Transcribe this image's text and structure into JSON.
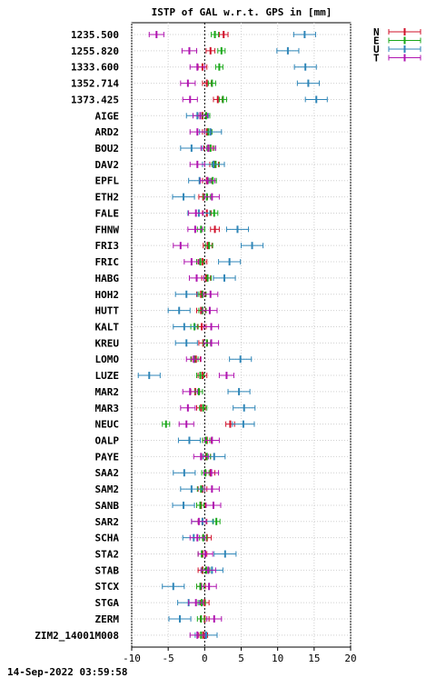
{
  "chart_data": {
    "type": "scatter",
    "title": "ISTP of GAL w.r.t. GPS in [mm]",
    "xlim": [
      -10,
      20
    ],
    "xticks": [
      -10,
      -5,
      0,
      5,
      10,
      15,
      20
    ],
    "grid": true,
    "legend_position": "top-right (outside plot)",
    "legend": [
      {
        "label": "N",
        "color": "#d0102a"
      },
      {
        "label": "E",
        "color": "#1aa81a"
      },
      {
        "label": "U",
        "color": "#2f86b8"
      },
      {
        "label": "T",
        "color": "#b015b0"
      }
    ],
    "categories": [
      "1235.500",
      "1255.820",
      "1333.600",
      "1352.714",
      "1373.425",
      "AIGE",
      "ARD2",
      "BOU2",
      "DAV2",
      "EPFL",
      "ETH2",
      "FALE",
      "FHNW",
      "FRI3",
      "FRIC",
      "HABG",
      "HOH2",
      "HUTT",
      "KALT",
      "KREU",
      "LOMO",
      "LUZE",
      "MAR2",
      "MAR3",
      "NEUC",
      "OALP",
      "PAYE",
      "SAA2",
      "SAM2",
      "SANB",
      "SAR2",
      "SCHA",
      "STA2",
      "STAB",
      "STCX",
      "STGA",
      "ZERM",
      "ZIM2_14001M008"
    ],
    "series": [
      {
        "name": "N",
        "color": "#d0102a",
        "err": 0.6,
        "values": [
          2.6,
          0.8,
          -0.3,
          0.3,
          1.8,
          -0.3,
          0.3,
          0.5,
          1.3,
          0.3,
          -0.2,
          0.3,
          1.4,
          0.4,
          -0.3,
          0.2,
          -0.5,
          -0.5,
          -0.4,
          -0.2,
          -1.2,
          -0.3,
          -1.3,
          -0.5,
          3.5,
          0.3,
          0.2,
          0.8,
          -0.3,
          -0.5,
          -0.3,
          0.3,
          -0.3,
          -0.3,
          -0.5,
          0,
          0,
          -0.2
        ]
      },
      {
        "name": "E",
        "color": "#1aa81a",
        "err": 0.5,
        "values": [
          1.4,
          2.3,
          2.0,
          1.0,
          2.5,
          0.2,
          0.5,
          0.8,
          1.5,
          1.1,
          0.3,
          1.3,
          -0.5,
          0.6,
          -0.6,
          0.4,
          -0.3,
          -0.3,
          -1.4,
          0.3,
          -1.4,
          -0.6,
          -0.8,
          -0.2,
          -5.3,
          0.2,
          0.3,
          0.1,
          -0.5,
          -0.6,
          1.6,
          -0.2,
          -0.4,
          0.2,
          -0.6,
          -0.4,
          -0.5,
          -0.5
        ]
      },
      {
        "name": "U",
        "color": "#2f86b8",
        "err": 1.5,
        "values": [
          13.7,
          11.4,
          13.8,
          14.2,
          15.3,
          -1.0,
          0.8,
          -1.8,
          1.2,
          -0.7,
          -2.9,
          -0.8,
          4.5,
          6.5,
          3.4,
          2.7,
          -2.5,
          -3.5,
          -2.8,
          -2.5,
          4.9,
          -7.6,
          4.7,
          5.4,
          5.3,
          -2.1,
          1.3,
          -2.8,
          -1.8,
          -2.9,
          -0.3,
          -1.5,
          2.8,
          1.0,
          -4.3,
          -2.2,
          -3.4,
          0.2
        ]
      },
      {
        "name": "T",
        "color": "#b015b0",
        "err": 1.0,
        "values": [
          -6.6,
          -2.1,
          -1.0,
          -2.3,
          -2.0,
          -0.6,
          -1.0,
          0.5,
          -1.0,
          0.4,
          1.0,
          -1.2,
          -1.3,
          -3.3,
          -1.8,
          -1.1,
          0.8,
          0.7,
          0.9,
          0.9,
          -1.5,
          3.0,
          -2.0,
          -2.3,
          -2.5,
          1.0,
          -0.5,
          0.9,
          1.0,
          1.2,
          -0.8,
          -1.0,
          0.1,
          0.5,
          0.6,
          -1.2,
          1.3,
          -1.0
        ]
      }
    ]
  },
  "footer": {
    "timestamp": "14-Sep-2022 03:59:58"
  }
}
